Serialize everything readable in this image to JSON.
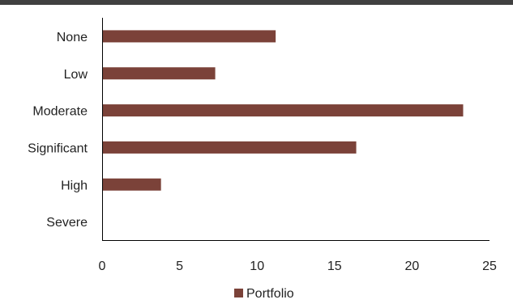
{
  "chart_data": {
    "type": "bar",
    "orientation": "horizontal",
    "categories": [
      "None",
      "Low",
      "Moderate",
      "Significant",
      "High",
      "Severe"
    ],
    "series": [
      {
        "name": "Portfolio",
        "values": [
          11.2,
          7.3,
          23.3,
          16.4,
          3.8,
          0
        ],
        "color": "#7B4239"
      }
    ],
    "xlim": [
      0,
      25
    ],
    "xticks": [
      0,
      5,
      10,
      15,
      20,
      25
    ],
    "grid": false,
    "legend": "bottom"
  }
}
